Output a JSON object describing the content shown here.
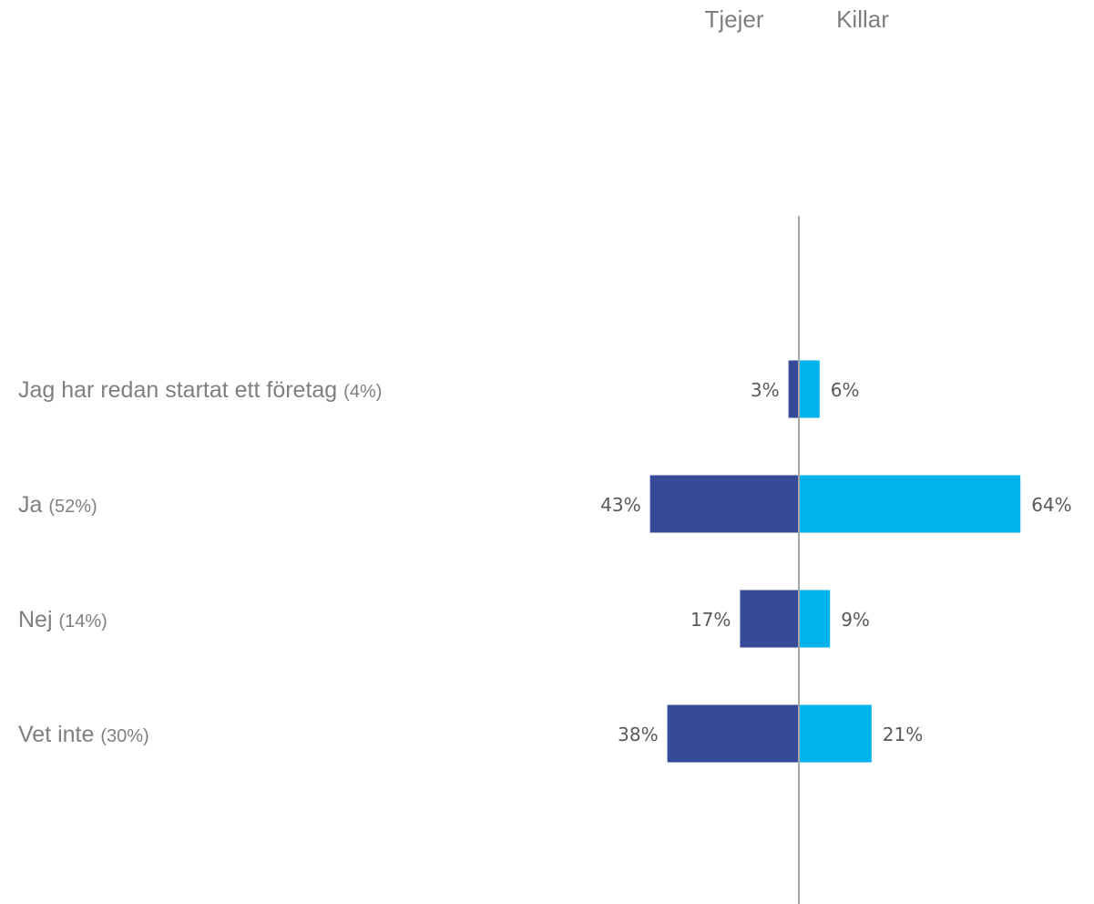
{
  "chart_data": {
    "type": "bar",
    "orientation": "horizontal-diverging",
    "series": [
      {
        "name": "Tjejer",
        "color": "#354b9a",
        "values": [
          3,
          43,
          17,
          38
        ]
      },
      {
        "name": "Killar",
        "color": "#00b3ec",
        "values": [
          6,
          64,
          9,
          21
        ]
      }
    ],
    "categories": [
      {
        "label": "Jag har redan startat ett företag",
        "total": "(4%)"
      },
      {
        "label": "Ja",
        "total": "(52%)"
      },
      {
        "label": "Nej",
        "total": "(14%)"
      },
      {
        "label": "Vet inte",
        "total": "(30%)"
      }
    ],
    "value_suffix": "%",
    "legend_position": "top",
    "axis_color": "#a6a6a6"
  }
}
